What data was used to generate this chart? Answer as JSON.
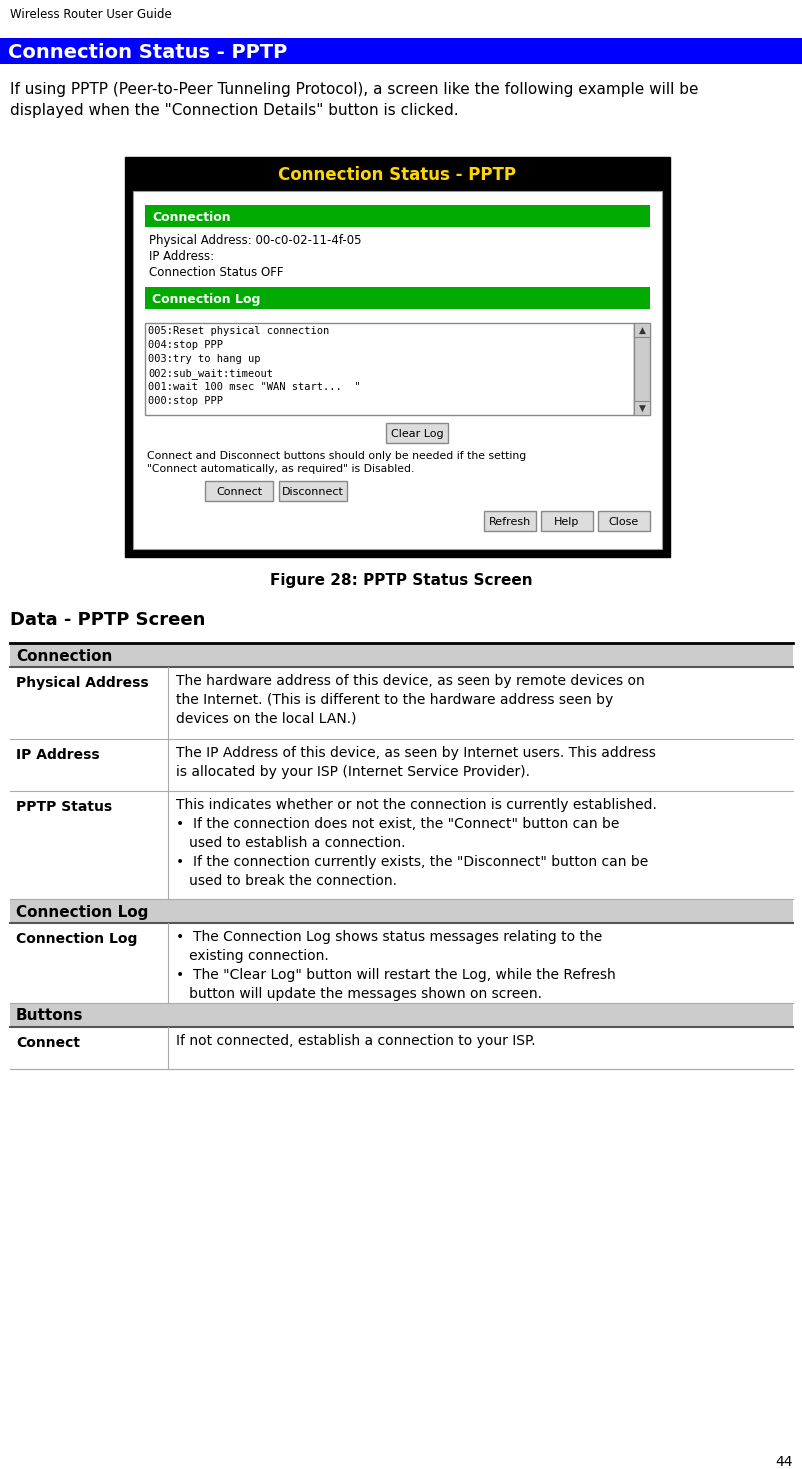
{
  "page_header": "Wireless Router User Guide",
  "section_title": "Connection Status - PPTP",
  "section_title_bg": "#0000FF",
  "section_title_color": "#FFFFFF",
  "intro_text": "If using PPTP (Peer-to-Peer Tunneling Protocol), a screen like the following example will be\ndisplayed when the \"Connection Details\" button is clicked.",
  "figure_caption": "Figure 28: PPTP Status Screen",
  "screenshot": {
    "title": "Connection Status - PPTP",
    "title_color": "#FFD700",
    "title_bg": "#000000",
    "conn_section_label": "Connection",
    "conn_section_bg": "#00AA00",
    "conn_section_color": "#FFFFFF",
    "fields": [
      "Physical Address: 00-c0-02-11-4f-05",
      "IP Address:",
      "Connection Status OFF"
    ],
    "log_section_label": "Connection Log",
    "log_section_bg": "#00AA00",
    "log_section_color": "#FFFFFF",
    "log_lines": [
      "005:Reset physical connection",
      "004:stop PPP",
      "003:try to hang up",
      "002:sub_wait:timeout",
      "001:wait 100 msec \"WAN start...  \"",
      "000:stop PPP"
    ],
    "note_text": "Connect and Disconnect buttons should only be needed if the setting\n\"Connect automatically, as required\" is Disabled.",
    "buttons_row1": [
      "Connect",
      "Disconnect"
    ],
    "buttons_row2": [
      "Refresh",
      "Help",
      "Close"
    ],
    "outer_border": "#888888",
    "log_bg": "#FFFFFF",
    "button_bg": "#CCCCCC"
  },
  "table_title": "Data - PPTP Screen",
  "table_header_bg": "#CCCCCC",
  "table_rows": [
    {
      "section_header": "Connection",
      "is_section": true
    },
    {
      "label": "Physical Address",
      "text": "The hardware address of this device, as seen by remote devices on\nthe Internet. (This is different to the hardware address seen by\ndevices on the local LAN.)",
      "is_section": false
    },
    {
      "label": "IP Address",
      "text": "The IP Address of this device, as seen by Internet users. This address\nis allocated by your ISP (Internet Service Provider).",
      "is_section": false
    },
    {
      "label": "PPTP Status",
      "text": "This indicates whether or not the connection is currently established.\n•  If the connection does not exist, the \"Connect\" button can be\n   used to establish a connection.\n•  If the connection currently exists, the \"Disconnect\" button can be\n   used to break the connection.",
      "is_section": false
    },
    {
      "section_header": "Connection Log",
      "is_section": true
    },
    {
      "label": "Connection Log",
      "text": "•  The Connection Log shows status messages relating to the\n   existing connection.\n•  The \"Clear Log\" button will restart the Log, while the Refresh\n   button will update the messages shown on screen.",
      "is_section": false
    },
    {
      "section_header": "Buttons",
      "is_section": true
    },
    {
      "label": "Connect",
      "text": "If not connected, establish a connection to your ISP.",
      "is_section": false
    }
  ],
  "page_number": "44",
  "bg_color": "#FFFFFF",
  "text_color": "#000000"
}
